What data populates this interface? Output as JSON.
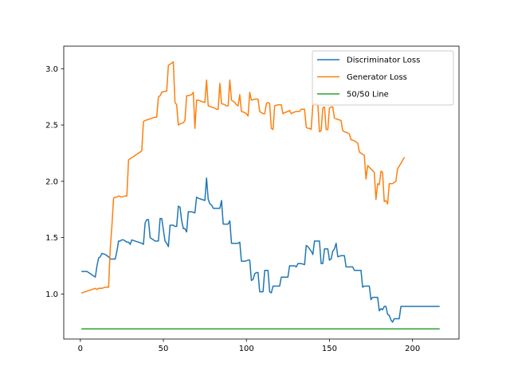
{
  "chart_data": {
    "type": "line",
    "title": "",
    "xlabel": "",
    "ylabel": "",
    "xlim": [
      -10,
      228
    ],
    "ylim": [
      0.6,
      3.2
    ],
    "xticks": [
      0,
      50,
      100,
      150,
      200
    ],
    "yticks": [
      1.0,
      1.5,
      2.0,
      2.5,
      3.0
    ],
    "xtick_labels": [
      "0",
      "50",
      "100",
      "150",
      "200"
    ],
    "ytick_labels": [
      "1.0",
      "1.5",
      "2.0",
      "2.5",
      "3.0"
    ],
    "grid": false,
    "legend_position": "top-right",
    "series": [
      {
        "name": "Discriminator Loss",
        "color": "#1f77b4",
        "points": [
          [
            1,
            1.2
          ],
          [
            3,
            1.2
          ],
          [
            4,
            1.2
          ],
          [
            6,
            1.18
          ],
          [
            8,
            1.16
          ],
          [
            9,
            1.15
          ],
          [
            10,
            1.25
          ],
          [
            11,
            1.32
          ],
          [
            12,
            1.33
          ],
          [
            13,
            1.36
          ],
          [
            15,
            1.35
          ],
          [
            17,
            1.33
          ],
          [
            18,
            1.31
          ],
          [
            21,
            1.31
          ],
          [
            22,
            1.38
          ],
          [
            23,
            1.47
          ],
          [
            24,
            1.47
          ],
          [
            25,
            1.48
          ],
          [
            26,
            1.48
          ],
          [
            28,
            1.46
          ],
          [
            29,
            1.46
          ],
          [
            30,
            1.44
          ],
          [
            31,
            1.48
          ],
          [
            33,
            1.47
          ],
          [
            35,
            1.46
          ],
          [
            37,
            1.45
          ],
          [
            38,
            1.44
          ],
          [
            39,
            1.63
          ],
          [
            40,
            1.66
          ],
          [
            41,
            1.66
          ],
          [
            42,
            1.5
          ],
          [
            44,
            1.48
          ],
          [
            45,
            1.47
          ],
          [
            47,
            1.47
          ],
          [
            48,
            1.67
          ],
          [
            49,
            1.67
          ],
          [
            50,
            1.57
          ],
          [
            51,
            1.47
          ],
          [
            52,
            1.45
          ],
          [
            53,
            1.42
          ],
          [
            54,
            1.61
          ],
          [
            56,
            1.61
          ],
          [
            57,
            1.6
          ],
          [
            58,
            1.6
          ],
          [
            59,
            1.78
          ],
          [
            60,
            1.77
          ],
          [
            61,
            1.65
          ],
          [
            62,
            1.58
          ],
          [
            63,
            1.58
          ],
          [
            64,
            1.55
          ],
          [
            65,
            1.73
          ],
          [
            67,
            1.73
          ],
          [
            69,
            1.72
          ],
          [
            70,
            1.86
          ],
          [
            71,
            1.85
          ],
          [
            73,
            1.84
          ],
          [
            75,
            1.83
          ],
          [
            76,
            2.03
          ],
          [
            77,
            1.84
          ],
          [
            78,
            1.8
          ],
          [
            79,
            1.79
          ],
          [
            80,
            1.76
          ],
          [
            81,
            1.76
          ],
          [
            83,
            1.76
          ],
          [
            84,
            1.76
          ],
          [
            85,
            1.83
          ],
          [
            86,
            1.62
          ],
          [
            87,
            1.62
          ],
          [
            89,
            1.62
          ],
          [
            90,
            1.65
          ],
          [
            91,
            1.45
          ],
          [
            93,
            1.45
          ],
          [
            95,
            1.45
          ],
          [
            96,
            1.46
          ],
          [
            97,
            1.29
          ],
          [
            99,
            1.29
          ],
          [
            101,
            1.3
          ],
          [
            102,
            1.3
          ],
          [
            103,
            1.12
          ],
          [
            104,
            1.13
          ],
          [
            105,
            1.18
          ],
          [
            106,
            1.19
          ],
          [
            107,
            1.19
          ],
          [
            108,
            1.02
          ],
          [
            109,
            1.02
          ],
          [
            110,
            1.02
          ],
          [
            111,
            1.21
          ],
          [
            113,
            1.21
          ],
          [
            114,
            1.02
          ],
          [
            115,
            1.01
          ],
          [
            116,
            1.07
          ],
          [
            117,
            1.07
          ],
          [
            119,
            1.07
          ],
          [
            120,
            1.07
          ],
          [
            121,
            1.15
          ],
          [
            123,
            1.15
          ],
          [
            125,
            1.15
          ],
          [
            126,
            1.25
          ],
          [
            128,
            1.25
          ],
          [
            129,
            1.25
          ],
          [
            130,
            1.24
          ],
          [
            131,
            1.27
          ],
          [
            133,
            1.27
          ],
          [
            135,
            1.26
          ],
          [
            136,
            1.43
          ],
          [
            137,
            1.42
          ],
          [
            139,
            1.38
          ],
          [
            140,
            1.35
          ],
          [
            141,
            1.47
          ],
          [
            143,
            1.47
          ],
          [
            144,
            1.47
          ],
          [
            145,
            1.27
          ],
          [
            146,
            1.27
          ],
          [
            147,
            1.4
          ],
          [
            149,
            1.4
          ],
          [
            150,
            1.3
          ],
          [
            151,
            1.31
          ],
          [
            152,
            1.38
          ],
          [
            153,
            1.4
          ],
          [
            154,
            1.45
          ],
          [
            155,
            1.33
          ],
          [
            157,
            1.34
          ],
          [
            159,
            1.34
          ],
          [
            160,
            1.24
          ],
          [
            162,
            1.24
          ],
          [
            164,
            1.24
          ],
          [
            165,
            1.21
          ],
          [
            167,
            1.21
          ],
          [
            169,
            1.21
          ],
          [
            170,
            1.06
          ],
          [
            171,
            1.07
          ],
          [
            173,
            1.07
          ],
          [
            174,
            1.07
          ],
          [
            175,
            0.95
          ],
          [
            176,
            0.97
          ],
          [
            178,
            0.97
          ],
          [
            179,
            0.97
          ],
          [
            180,
            0.85
          ],
          [
            181,
            0.87
          ],
          [
            182,
            0.86
          ],
          [
            183,
            0.89
          ],
          [
            184,
            0.89
          ],
          [
            185,
            0.82
          ],
          [
            186,
            0.81
          ],
          [
            187,
            0.77
          ],
          [
            188,
            0.75
          ],
          [
            189,
            0.78
          ],
          [
            191,
            0.78
          ],
          [
            192,
            0.78
          ],
          [
            193,
            0.89
          ],
          [
            195,
            0.89
          ],
          [
            216,
            0.89
          ]
        ]
      },
      {
        "name": "Generator Loss",
        "color": "#ff7f0e",
        "points": [
          [
            1,
            1.01
          ],
          [
            3,
            1.02
          ],
          [
            5,
            1.03
          ],
          [
            7,
            1.04
          ],
          [
            9,
            1.05
          ],
          [
            10,
            1.04
          ],
          [
            11,
            1.05
          ],
          [
            13,
            1.05
          ],
          [
            15,
            1.06
          ],
          [
            16,
            1.06
          ],
          [
            17,
            1.06
          ],
          [
            18,
            1.41
          ],
          [
            19,
            1.6
          ],
          [
            20,
            1.85
          ],
          [
            21,
            1.86
          ],
          [
            22,
            1.86
          ],
          [
            23,
            1.87
          ],
          [
            25,
            1.86
          ],
          [
            27,
            1.87
          ],
          [
            28,
            1.87
          ],
          [
            29,
            2.19
          ],
          [
            30,
            2.2
          ],
          [
            32,
            2.22
          ],
          [
            34,
            2.24
          ],
          [
            36,
            2.26
          ],
          [
            37,
            2.27
          ],
          [
            38,
            2.53
          ],
          [
            39,
            2.54
          ],
          [
            41,
            2.55
          ],
          [
            43,
            2.56
          ],
          [
            45,
            2.57
          ],
          [
            46,
            2.57
          ],
          [
            47,
            2.75
          ],
          [
            48,
            2.76
          ],
          [
            49,
            2.79
          ],
          [
            51,
            2.8
          ],
          [
            52,
            2.8
          ],
          [
            53,
            3.03
          ],
          [
            55,
            3.05
          ],
          [
            56,
            3.06
          ],
          [
            57,
            2.7
          ],
          [
            58,
            2.68
          ],
          [
            59,
            2.5
          ],
          [
            60,
            2.51
          ],
          [
            62,
            2.52
          ],
          [
            63,
            2.54
          ],
          [
            64,
            2.76
          ],
          [
            65,
            2.76
          ],
          [
            67,
            2.77
          ],
          [
            68,
            2.79
          ],
          [
            69,
            2.47
          ],
          [
            70,
            2.72
          ],
          [
            71,
            2.72
          ],
          [
            73,
            2.71
          ],
          [
            75,
            2.7
          ],
          [
            76,
            2.9
          ],
          [
            77,
            2.67
          ],
          [
            79,
            2.66
          ],
          [
            81,
            2.65
          ],
          [
            82,
            2.64
          ],
          [
            83,
            2.64
          ],
          [
            84,
            2.87
          ],
          [
            85,
            2.69
          ],
          [
            87,
            2.68
          ],
          [
            88,
            2.67
          ],
          [
            89,
            2.67
          ],
          [
            90,
            2.9
          ],
          [
            91,
            2.72
          ],
          [
            93,
            2.7
          ],
          [
            94,
            2.68
          ],
          [
            95,
            2.67
          ],
          [
            96,
            2.77
          ],
          [
            97,
            2.62
          ],
          [
            99,
            2.61
          ],
          [
            100,
            2.6
          ],
          [
            101,
            2.58
          ],
          [
            102,
            2.79
          ],
          [
            103,
            2.72
          ],
          [
            105,
            2.73
          ],
          [
            107,
            2.73
          ],
          [
            108,
            2.62
          ],
          [
            109,
            2.61
          ],
          [
            110,
            2.6
          ],
          [
            111,
            2.6
          ],
          [
            112,
            2.69
          ],
          [
            113,
            2.7
          ],
          [
            114,
            2.69
          ],
          [
            115,
            2.47
          ],
          [
            116,
            2.46
          ],
          [
            117,
            2.67
          ],
          [
            119,
            2.68
          ],
          [
            121,
            2.68
          ],
          [
            122,
            2.6
          ],
          [
            123,
            2.61
          ],
          [
            125,
            2.62
          ],
          [
            126,
            2.63
          ],
          [
            127,
            2.6
          ],
          [
            128,
            2.61
          ],
          [
            130,
            2.62
          ],
          [
            132,
            2.62
          ],
          [
            133,
            2.64
          ],
          [
            135,
            2.64
          ],
          [
            136,
            2.48
          ],
          [
            137,
            2.47
          ],
          [
            138,
            2.47
          ],
          [
            139,
            2.46
          ],
          [
            140,
            2.68
          ],
          [
            141,
            2.69
          ],
          [
            142,
            2.69
          ],
          [
            143,
            2.68
          ],
          [
            144,
            2.44
          ],
          [
            145,
            2.45
          ],
          [
            146,
            2.65
          ],
          [
            147,
            2.66
          ],
          [
            148,
            2.46
          ],
          [
            149,
            2.46
          ],
          [
            150,
            2.65
          ],
          [
            151,
            2.66
          ],
          [
            152,
            2.66
          ],
          [
            153,
            2.56
          ],
          [
            155,
            2.55
          ],
          [
            157,
            2.54
          ],
          [
            158,
            2.45
          ],
          [
            159,
            2.44
          ],
          [
            161,
            2.43
          ],
          [
            162,
            2.42
          ],
          [
            163,
            2.37
          ],
          [
            165,
            2.36
          ],
          [
            167,
            2.34
          ],
          [
            168,
            2.26
          ],
          [
            169,
            2.25
          ],
          [
            171,
            2.23
          ],
          [
            172,
            2.02
          ],
          [
            173,
            2.14
          ],
          [
            175,
            2.11
          ],
          [
            177,
            2.08
          ],
          [
            178,
            1.84
          ],
          [
            179,
            1.98
          ],
          [
            180,
            1.97
          ],
          [
            181,
            2.09
          ],
          [
            182,
            2.08
          ],
          [
            183,
            1.82
          ],
          [
            184,
            1.83
          ],
          [
            185,
            1.8
          ],
          [
            186,
            1.98
          ],
          [
            188,
            1.98
          ],
          [
            190,
            2.0
          ],
          [
            191,
            2.11
          ],
          [
            193,
            2.16
          ],
          [
            195,
            2.21
          ]
        ]
      },
      {
        "name": "50/50 Line",
        "color": "#2ca02c",
        "points": [
          [
            1,
            0.69
          ],
          [
            216,
            0.69
          ]
        ]
      }
    ]
  }
}
